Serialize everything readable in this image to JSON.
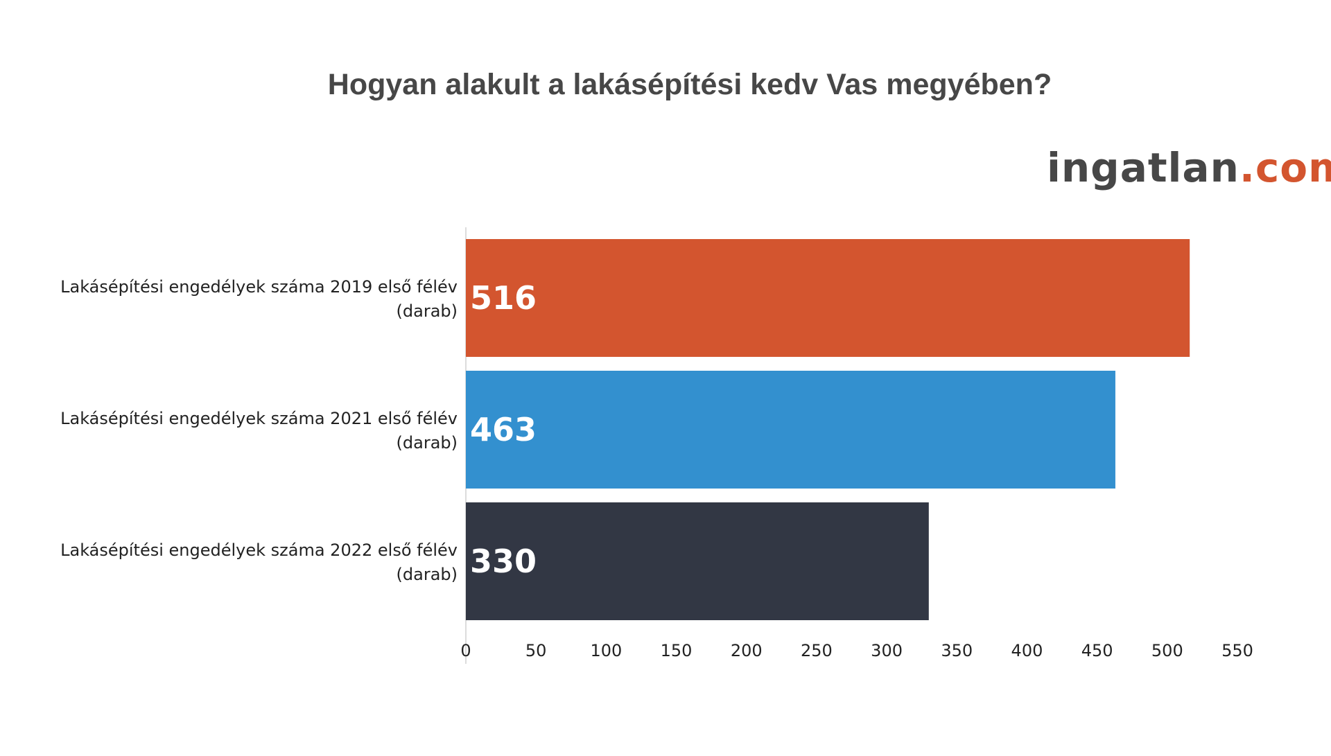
{
  "title": "Hogyan alakult a lakásépítési kedv Vas megyében?",
  "logo": {
    "main": "ingatlan",
    "dot": ".",
    "suffix": "com"
  },
  "chart_data": {
    "type": "bar",
    "orientation": "horizontal",
    "title": "Hogyan alakult a lakásépítési kedv Vas megyében?",
    "categories": [
      [
        "Lakásépítési engedélyek száma 2019 első félév",
        "(darab)"
      ],
      [
        "Lakásépítési engedélyek száma 2021 első félév",
        "(darab)"
      ],
      [
        "Lakásépítési engedélyek száma 2022 első félév",
        "(darab)"
      ]
    ],
    "values": [
      516,
      463,
      330
    ],
    "value_labels": [
      "516",
      "463",
      "330"
    ],
    "colors": [
      "#d3552f",
      "#3390cf",
      "#323744"
    ],
    "xlim": [
      0,
      550
    ],
    "ticks": [
      0,
      50,
      100,
      150,
      200,
      250,
      300,
      350,
      400,
      450,
      500,
      550
    ],
    "grid": false,
    "legend": "none"
  }
}
